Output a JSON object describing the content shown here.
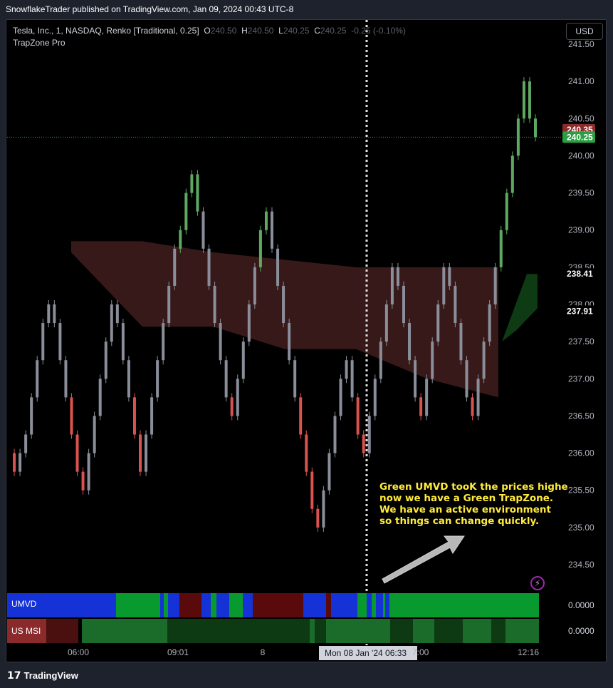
{
  "publisher_line": "SnowflakeTrader published on TradingView.com, Jan 09, 2024 00:43 UTC-8",
  "legend": {
    "symbol": "Tesla, Inc., 1, NASDAQ, Renko [Traditional, 0.25]",
    "open_label": "O",
    "open": "240.50",
    "high_label": "H",
    "high": "240.50",
    "low_label": "L",
    "low": "240.25",
    "close_label": "C",
    "close": "240.25",
    "change": "-0.25 (-0.10%)",
    "indicator": "TrapZone Pro"
  },
  "currency_button": "USD",
  "annotation": "Green UMVD tooK the prices highe\nnow we have a Green TrapZone.\nWe have an active environment\nso things can change quickly.",
  "footer_logo": "TradingView",
  "colors": {
    "up_brick": "#5fa863",
    "down_brick": "#d9534f",
    "neutral_brick": "#8a8e9a",
    "red_zone": "#3b1a1a",
    "green_zone": "#0e3b14",
    "umvd_blue": "#1432d6",
    "umvd_green": "#089a2e",
    "umvd_red": "#5a0a0a",
    "msi_green": "#1b6b2a",
    "msi_dark": "#0d3a12",
    "annotation": "#ffeb3b"
  },
  "chart_data": {
    "type": "candlestick",
    "y_ticks": [
      "241.50",
      "241.00",
      "240.50",
      "240.00",
      "239.50",
      "239.00",
      "238.50",
      "238.00",
      "237.50",
      "237.00",
      "236.50",
      "236.00",
      "235.50",
      "235.00",
      "234.50"
    ],
    "ylim": [
      234.3,
      241.55
    ],
    "x_ticks": [
      "06:00",
      "09:01",
      "8",
      "12:16"
    ],
    "x_cursor_label": "Mon 08 Jan '24   06:33",
    "x_cursor_partial": "7:00",
    "price_labels": [
      {
        "value": "240.35",
        "color": "#8b2c2c"
      },
      {
        "value": "240.25",
        "color": "#2e9e44"
      },
      {
        "value": "238.41",
        "color": "#000000"
      },
      {
        "value": "237.91",
        "color": "#000000"
      }
    ],
    "last_price": 240.25,
    "renko_path": [
      236.0,
      235.75,
      236.0,
      236.25,
      236.75,
      237.25,
      237.75,
      238.0,
      237.75,
      237.25,
      236.75,
      236.25,
      235.75,
      235.5,
      236.0,
      236.5,
      237.0,
      237.5,
      238.0,
      237.75,
      237.25,
      236.75,
      236.25,
      235.75,
      236.25,
      236.75,
      237.25,
      237.75,
      238.25,
      238.75,
      239.0,
      239.5,
      239.75,
      239.25,
      238.75,
      238.25,
      237.75,
      237.25,
      236.75,
      236.5,
      237.0,
      237.5,
      238.0,
      238.5,
      239.0,
      239.25,
      238.75,
      238.25,
      237.75,
      237.25,
      236.75,
      236.25,
      235.75,
      235.25,
      235.0,
      235.5,
      236.0,
      236.5,
      237.0,
      237.25,
      236.75,
      236.25,
      236.0,
      236.5,
      237.0,
      237.5,
      238.0,
      238.5,
      238.25,
      237.75,
      237.25,
      236.75,
      236.5,
      237.0,
      237.5,
      238.0,
      238.5,
      238.25,
      237.75,
      237.25,
      236.75,
      236.5,
      237.0,
      237.5,
      238.0,
      238.5,
      239.0,
      239.5,
      240.0,
      240.5,
      241.0,
      240.5,
      240.25
    ],
    "red_trapzone": {
      "top": [
        238.85,
        238.85,
        238.7,
        238.6,
        238.5,
        238.5,
        238.5
      ],
      "bottom": [
        238.7,
        237.7,
        237.7,
        237.4,
        237.4,
        237.0,
        236.75
      ]
    },
    "green_trapzone": {
      "top": 238.41,
      "bottom": 237.5
    },
    "umvd_value": "0.0000",
    "msi_value": "0.0000",
    "umvd_label": "UMVD",
    "msi_label": "US MSI"
  }
}
